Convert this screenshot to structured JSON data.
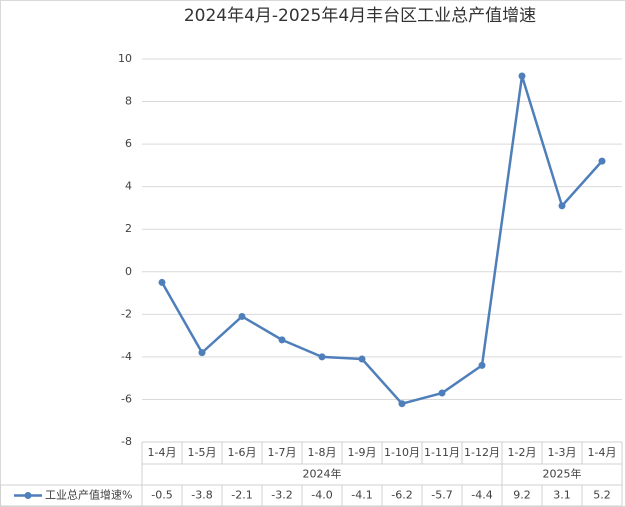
{
  "chart_data": {
    "type": "line",
    "title": "2024年4月-2025年4月丰台区工业总产值增速",
    "category_groups": [
      {
        "name": "2024年",
        "categories": [
          "1-4月",
          "1-5月",
          "1-6月",
          "1-7月",
          "1-8月",
          "1-9月",
          "1-10月",
          "1-11月",
          "1-12月"
        ]
      },
      {
        "name": "2025年",
        "categories": [
          "1-2月",
          "1-3月",
          "1-4月"
        ]
      }
    ],
    "series": [
      {
        "name": "工业总产值增速%",
        "color": "#4f7fba",
        "values": [
          -0.5,
          -3.8,
          -2.1,
          -3.2,
          -4.0,
          -4.1,
          -6.2,
          -5.7,
          -4.4,
          9.2,
          3.1,
          5.2
        ],
        "value_labels": [
          "-0.5",
          "-3.8",
          "-2.1",
          "-3.2",
          "-4.0",
          "-4.1",
          "-6.2",
          "-5.7",
          "-4.4",
          "9.2",
          "3.1",
          "5.2"
        ]
      }
    ],
    "ylim": [
      -8,
      10
    ],
    "yticks": [
      -8,
      -6,
      -4,
      -2,
      0,
      2,
      4,
      6,
      8,
      10
    ],
    "grid": true,
    "legend": "data-table"
  }
}
